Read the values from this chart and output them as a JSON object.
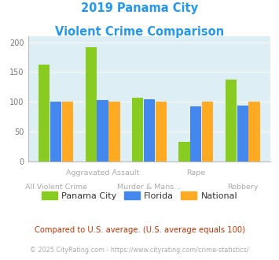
{
  "title_line1": "2019 Panama City",
  "title_line2": "Violent Crime Comparison",
  "title_color": "#2299ee",
  "categories": [
    "All Violent Crime",
    "Aggravated Assault",
    "Murder & Mans...",
    "Rape",
    "Robbery"
  ],
  "panama_city": [
    163,
    192,
    107,
    33,
    137
  ],
  "florida": [
    100,
    103,
    104,
    92,
    93
  ],
  "national": [
    100,
    100,
    100,
    100,
    100
  ],
  "bar_color_panama": "#88cc22",
  "bar_color_florida": "#4488ee",
  "bar_color_national": "#ffaa22",
  "ylim": [
    0,
    210
  ],
  "yticks": [
    0,
    50,
    100,
    150,
    200
  ],
  "background_color": "#ddeef5",
  "legend_label_panama": "Panama City",
  "legend_label_florida": "Florida",
  "legend_label_national": "National",
  "footnote1": "Compared to U.S. average. (U.S. average equals 100)",
  "footnote2": "© 2025 CityRating.com - https://www.cityrating.com/crime-statistics/",
  "footnote1_color": "#cc3300",
  "footnote2_color": "#aaaaaa",
  "x_top_row": [
    "",
    "Aggravated Assault",
    "",
    "Rape",
    ""
  ],
  "x_bot_row": [
    "All Violent Crime",
    "",
    "Murder & Mans...",
    "",
    "Robbery"
  ]
}
